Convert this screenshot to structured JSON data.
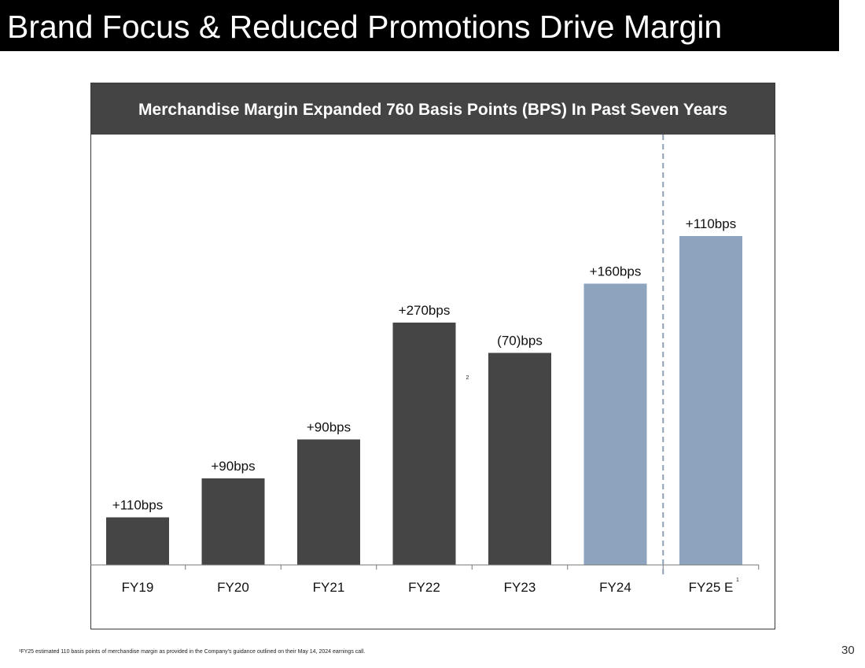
{
  "slide": {
    "title": "Brand Focus & Reduced Promotions Drive Margin",
    "page_number": "30",
    "footnote": "¹FY25 estimated 110 basis points of merchandise margin as provided in the Company’s guidance outlined on their May 14, 2024 earnings call."
  },
  "chart_data": {
    "type": "bar",
    "title": "Merchandise Margin Expanded 760 Basis Points (BPS) In Past Seven Years",
    "xlabel": "",
    "ylabel": "",
    "grid": false,
    "categories": [
      "FY19",
      "FY20",
      "FY21",
      "FY22",
      "FY23",
      "FY24",
      "FY25 E"
    ],
    "cumulative_bps": [
      110,
      200,
      290,
      560,
      490,
      650,
      760
    ],
    "data_labels": [
      "+110bps",
      "+90bps",
      "+90bps",
      "+270bps",
      "(70)bps",
      "+160bps",
      "+110bps"
    ],
    "ylim": [
      0,
      960
    ],
    "colors": [
      "#454545",
      "#454545",
      "#454545",
      "#454545",
      "#454545",
      "#8EA3BD",
      "#8EA3BD"
    ],
    "footnote_marks": [
      {
        "category": "FY22",
        "text": "2"
      },
      {
        "category": "FY25 E",
        "text": "1"
      }
    ],
    "divider": {
      "between": [
        "FY24",
        "FY25 E"
      ],
      "style": "dashed",
      "color": "#8FA0B3"
    }
  }
}
